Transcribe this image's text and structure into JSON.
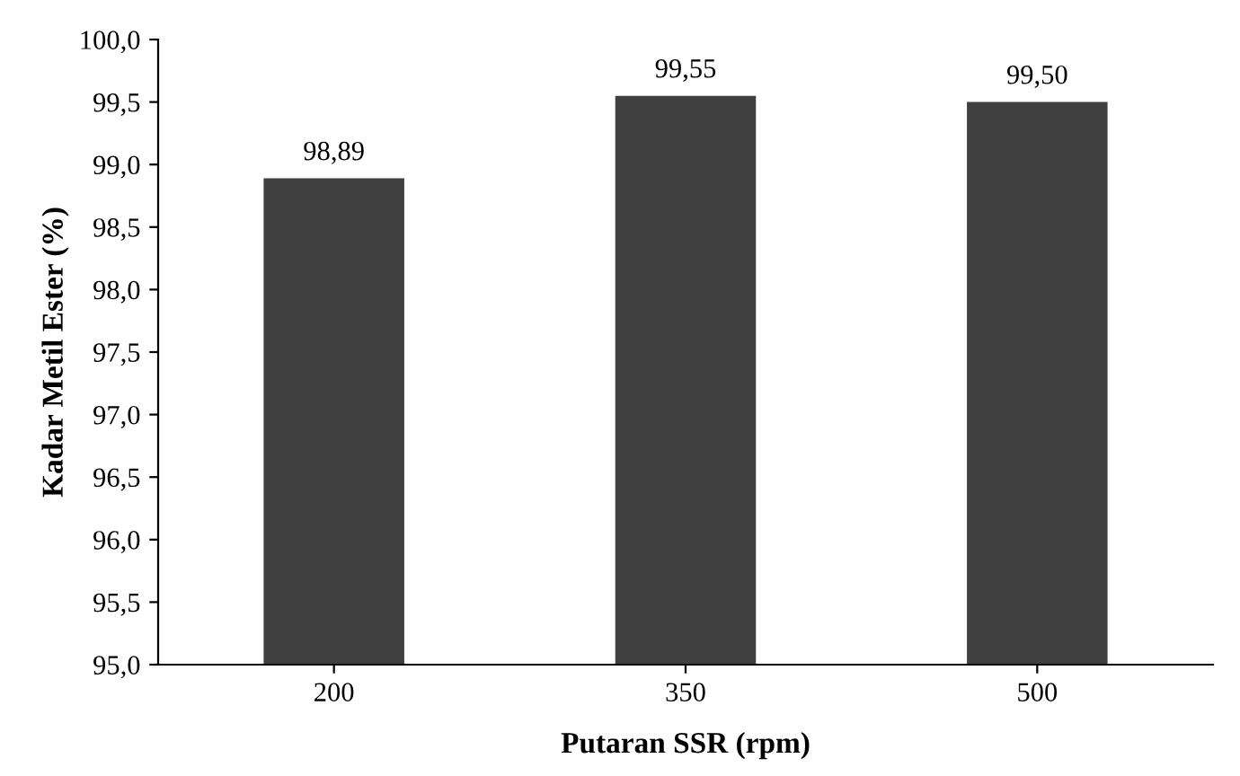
{
  "chart_data": {
    "type": "bar",
    "xlabel": "Putaran SSR (rpm)",
    "ylabel": "Kadar Metil Ester (%)",
    "categories": [
      "200",
      "350",
      "500"
    ],
    "values": [
      98.89,
      99.55,
      99.5
    ],
    "value_labels": [
      "98,89",
      "99,55",
      "99,50"
    ],
    "color": "#404040",
    "ylim": [
      95.0,
      100.0
    ],
    "yticks": [
      {
        "value": 95.0,
        "label": "95,0"
      },
      {
        "value": 95.5,
        "label": "95,5"
      },
      {
        "value": 96.0,
        "label": "96,0"
      },
      {
        "value": 96.5,
        "label": "96,5"
      },
      {
        "value": 97.0,
        "label": "97,0"
      },
      {
        "value": 97.5,
        "label": "97,5"
      },
      {
        "value": 98.0,
        "label": "98,0"
      },
      {
        "value": 98.5,
        "label": "98,5"
      },
      {
        "value": 99.0,
        "label": "99,0"
      },
      {
        "value": 99.5,
        "label": "99,5"
      },
      {
        "value": 100.0,
        "label": "100,0"
      }
    ],
    "grid": false,
    "legend": false
  }
}
